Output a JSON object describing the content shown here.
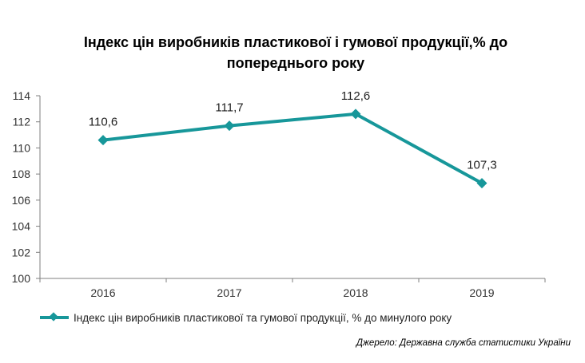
{
  "colors": {
    "series": "#17979a",
    "axis": "#7f7f7f",
    "grid": "#d9d9d9"
  },
  "chart_data": {
    "type": "line",
    "title": "Індекс цін виробників пластикової і гумової продукції,% до попереднього року",
    "categories": [
      "2016",
      "2017",
      "2018",
      "2019"
    ],
    "series": [
      {
        "name": "Індекс  цін виробників пластикової  та гумової продукції,  % до минулого  року",
        "values": [
          110.6,
          111.7,
          112.6,
          107.3
        ],
        "labels": [
          "110,6",
          "111,7",
          "112,6",
          "107,3"
        ]
      }
    ],
    "ylim": [
      100,
      114
    ],
    "yticks": [
      "100",
      "102",
      "104",
      "106",
      "108",
      "110",
      "112",
      "114"
    ],
    "grid": false,
    "legend": "bottom",
    "marker": "diamond"
  },
  "source": "Джерело: Державна служба статистики України"
}
